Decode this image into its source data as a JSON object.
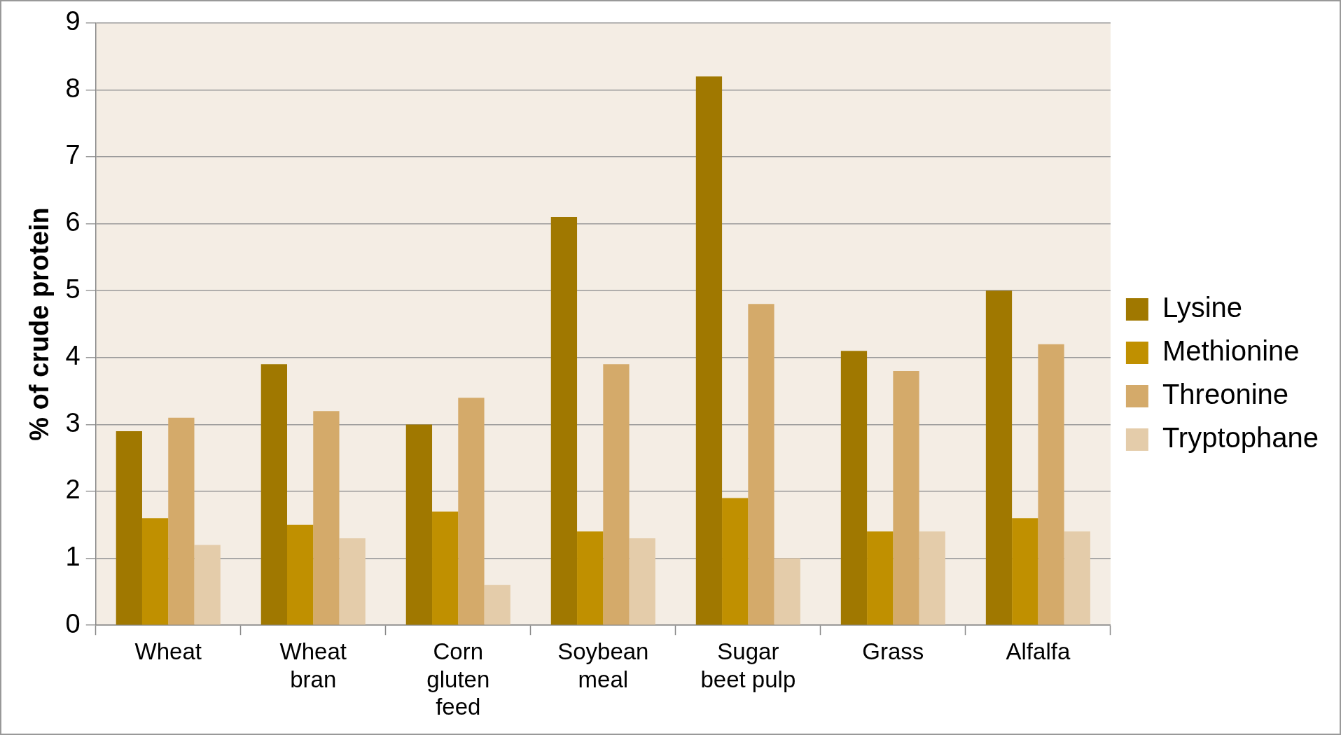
{
  "chart_data": {
    "type": "bar",
    "ylabel": "% of crude protein",
    "categories": [
      "Wheat",
      "Wheat bran",
      "Corn gluten feed",
      "Soybean meal",
      "Sugar beet pulp",
      "Grass",
      "Alfalfa"
    ],
    "series": [
      {
        "name": "Lysine",
        "color": "#a07800",
        "values": [
          2.9,
          3.9,
          3.0,
          6.1,
          8.2,
          4.1,
          5.0
        ]
      },
      {
        "name": "Methionine",
        "color": "#c09000",
        "values": [
          1.6,
          1.5,
          1.7,
          1.4,
          1.9,
          1.4,
          1.6
        ]
      },
      {
        "name": "Threonine",
        "color": "#d4aa6a",
        "values": [
          3.1,
          3.2,
          3.4,
          3.9,
          4.8,
          3.8,
          4.2
        ]
      },
      {
        "name": "Tryptophane",
        "color": "#e4ccaa",
        "values": [
          1.2,
          1.3,
          0.6,
          1.3,
          1.0,
          1.4,
          1.4
        ]
      }
    ],
    "ylim": [
      0,
      9
    ],
    "yticks": [
      0,
      1,
      2,
      3,
      4,
      5,
      6,
      7,
      8,
      9
    ],
    "grid": "y",
    "legend": "right"
  }
}
